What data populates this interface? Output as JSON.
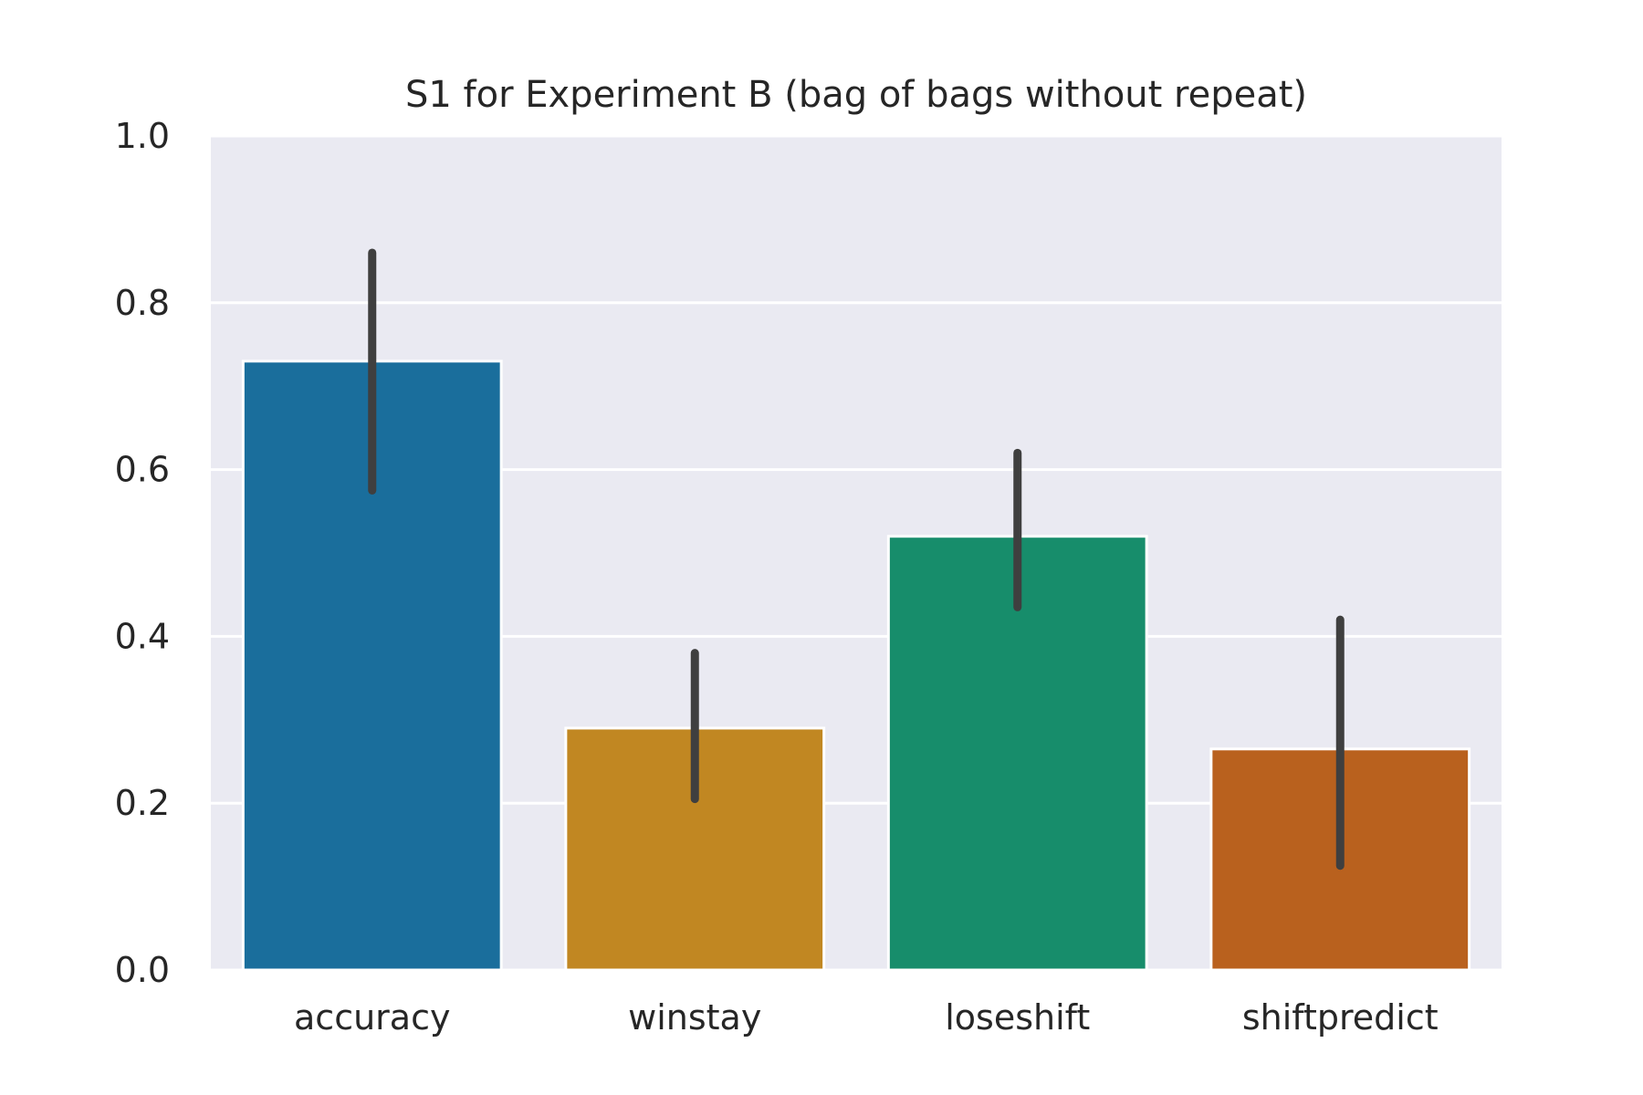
{
  "chart_data": {
    "type": "bar",
    "title": "S1 for Experiment B (bag of bags without repeat)",
    "xlabel": "",
    "ylabel": "",
    "categories": [
      "accuracy",
      "winstay",
      "loseshift",
      "shiftpredict"
    ],
    "values": [
      0.73,
      0.29,
      0.52,
      0.265
    ],
    "error_bars": [
      {
        "low": 0.575,
        "high": 0.86
      },
      {
        "low": 0.205,
        "high": 0.38
      },
      {
        "low": 0.435,
        "high": 0.62
      },
      {
        "low": 0.125,
        "high": 0.42
      }
    ],
    "ylim": [
      0,
      1.0
    ],
    "yticks": [
      0.0,
      0.2,
      0.4,
      0.6,
      0.8,
      1.0
    ],
    "ytick_labels": [
      "0.0",
      "0.2",
      "0.4",
      "0.6",
      "0.8",
      "1.0"
    ],
    "grid": true,
    "colors": {
      "bars": [
        "#1a6e9c",
        "#c18722",
        "#178d6b",
        "#b9611e"
      ],
      "error_bar": "#3f3f3f",
      "plot_background": "#eaeaf2",
      "grid": "#ffffff"
    }
  }
}
